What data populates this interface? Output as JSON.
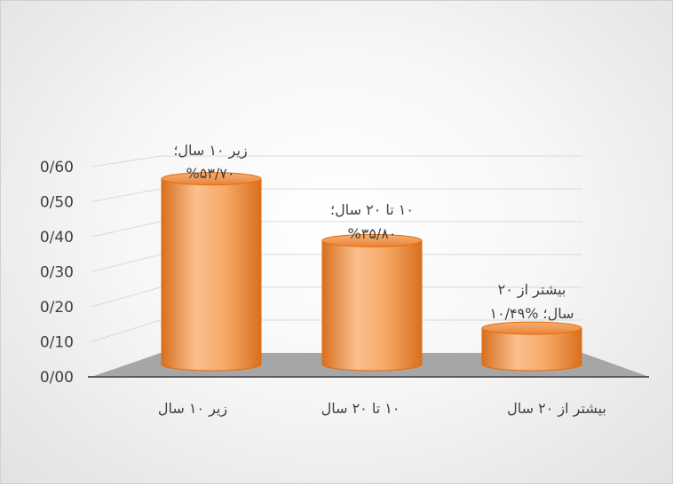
{
  "chart_data": {
    "type": "bar",
    "style": "3d-cylinder",
    "categories": [
      "زیر ۱۰ سال",
      "۱۰ تا ۲۰ سال",
      "بیشتر از ۲۰ سال"
    ],
    "values": [
      0.537,
      0.358,
      0.1049
    ],
    "data_labels": [
      [
        "زیر ۱۰ سال؛",
        "%۵۳/۷۰"
      ],
      [
        "۱۰ تا ۲۰ سال؛",
        "%۳۵/۸۰"
      ],
      [
        "بیشتر از ۲۰",
        "سال؛ %۱۰/۴۹"
      ]
    ],
    "y_ticks": [
      "0/00",
      "0/10",
      "0/20",
      "0/30",
      "0/40",
      "0/50",
      "0/60"
    ],
    "ylim": [
      0,
      0.6
    ],
    "grid": true,
    "legend": "none",
    "colors": {
      "bar_light": "#FAC08F",
      "bar_mid": "#F29A4A",
      "bar_dark": "#D8701F",
      "bar_edge": "#E36C09",
      "floor": "#A6A6A6",
      "grid": "#D9D9D9",
      "axis": "#595959"
    }
  }
}
